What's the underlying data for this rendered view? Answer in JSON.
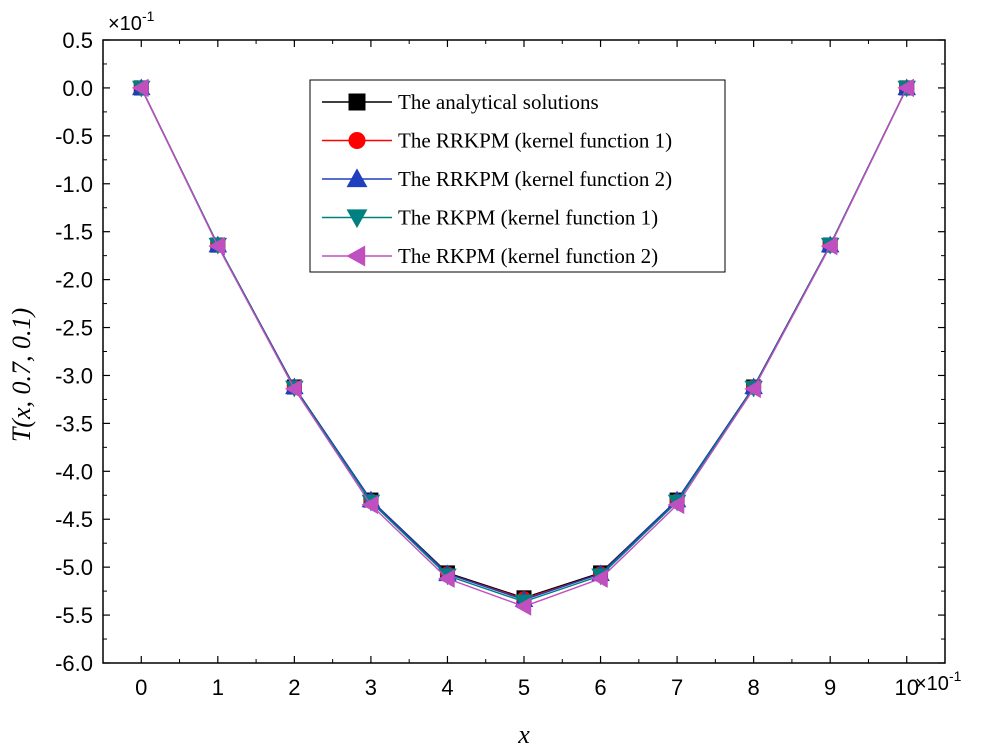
{
  "chart_data": {
    "type": "line",
    "xlabel": "x",
    "ylabel": "T(x, 0.7, 0.1)",
    "x_multiplier": {
      "base": "×10",
      "exponent": "-1"
    },
    "y_multiplier": {
      "base": "×10",
      "exponent": "-1"
    },
    "xlim": [
      -0.5,
      10.5
    ],
    "ylim": [
      -6.0,
      0.5
    ],
    "xticks": [
      0,
      1,
      2,
      3,
      4,
      5,
      6,
      7,
      8,
      9,
      10
    ],
    "xtick_labels": [
      "0",
      "1",
      "2",
      "3",
      "4",
      "5",
      "6",
      "7",
      "8",
      "9",
      "10"
    ],
    "yticks": [
      0.5,
      0.0,
      -0.5,
      -1.0,
      -1.5,
      -2.0,
      -2.5,
      -3.0,
      -3.5,
      -4.0,
      -4.5,
      -5.0,
      -5.5,
      -6.0
    ],
    "ytick_labels": [
      "0.5",
      "0.0",
      "-0.5",
      "-1.0",
      "-1.5",
      "-2.0",
      "-2.5",
      "-3.0",
      "-3.5",
      "-4.0",
      "-4.5",
      "-5.0",
      "-5.5",
      "-6.0"
    ],
    "legend_position": "top-center",
    "x": [
      0,
      1,
      2,
      3,
      4,
      5,
      6,
      7,
      8,
      9,
      10
    ],
    "series": [
      {
        "name": "The analytical solutions",
        "color": "#000000",
        "marker": "square",
        "values": [
          0.0,
          -1.64,
          -3.12,
          -4.3,
          -5.06,
          -5.32,
          -5.06,
          -4.3,
          -3.12,
          -1.64,
          0.0
        ]
      },
      {
        "name": "The RRKPM (kernel function 1)",
        "color": "#ff0000",
        "marker": "circle",
        "values": [
          0.0,
          -1.64,
          -3.12,
          -4.31,
          -5.07,
          -5.33,
          -5.07,
          -4.31,
          -3.12,
          -1.64,
          0.0
        ]
      },
      {
        "name": "The RRKPM (kernel function 2)",
        "color": "#1f3fbf",
        "marker": "triangle-up",
        "values": [
          0.0,
          -1.64,
          -3.12,
          -4.3,
          -5.07,
          -5.34,
          -5.07,
          -4.3,
          -3.12,
          -1.64,
          0.0
        ]
      },
      {
        "name": "The RKPM (kernel function 1)",
        "color": "#008080",
        "marker": "triangle-down",
        "values": [
          0.0,
          -1.64,
          -3.13,
          -4.32,
          -5.09,
          -5.36,
          -5.09,
          -4.32,
          -3.13,
          -1.64,
          0.0
        ]
      },
      {
        "name": "The RKPM (kernel function 2)",
        "color": "#c04fc0",
        "marker": "triangle-left",
        "values": [
          0.0,
          -1.65,
          -3.14,
          -4.35,
          -5.12,
          -5.41,
          -5.12,
          -4.35,
          -3.14,
          -1.65,
          0.0
        ]
      }
    ]
  }
}
